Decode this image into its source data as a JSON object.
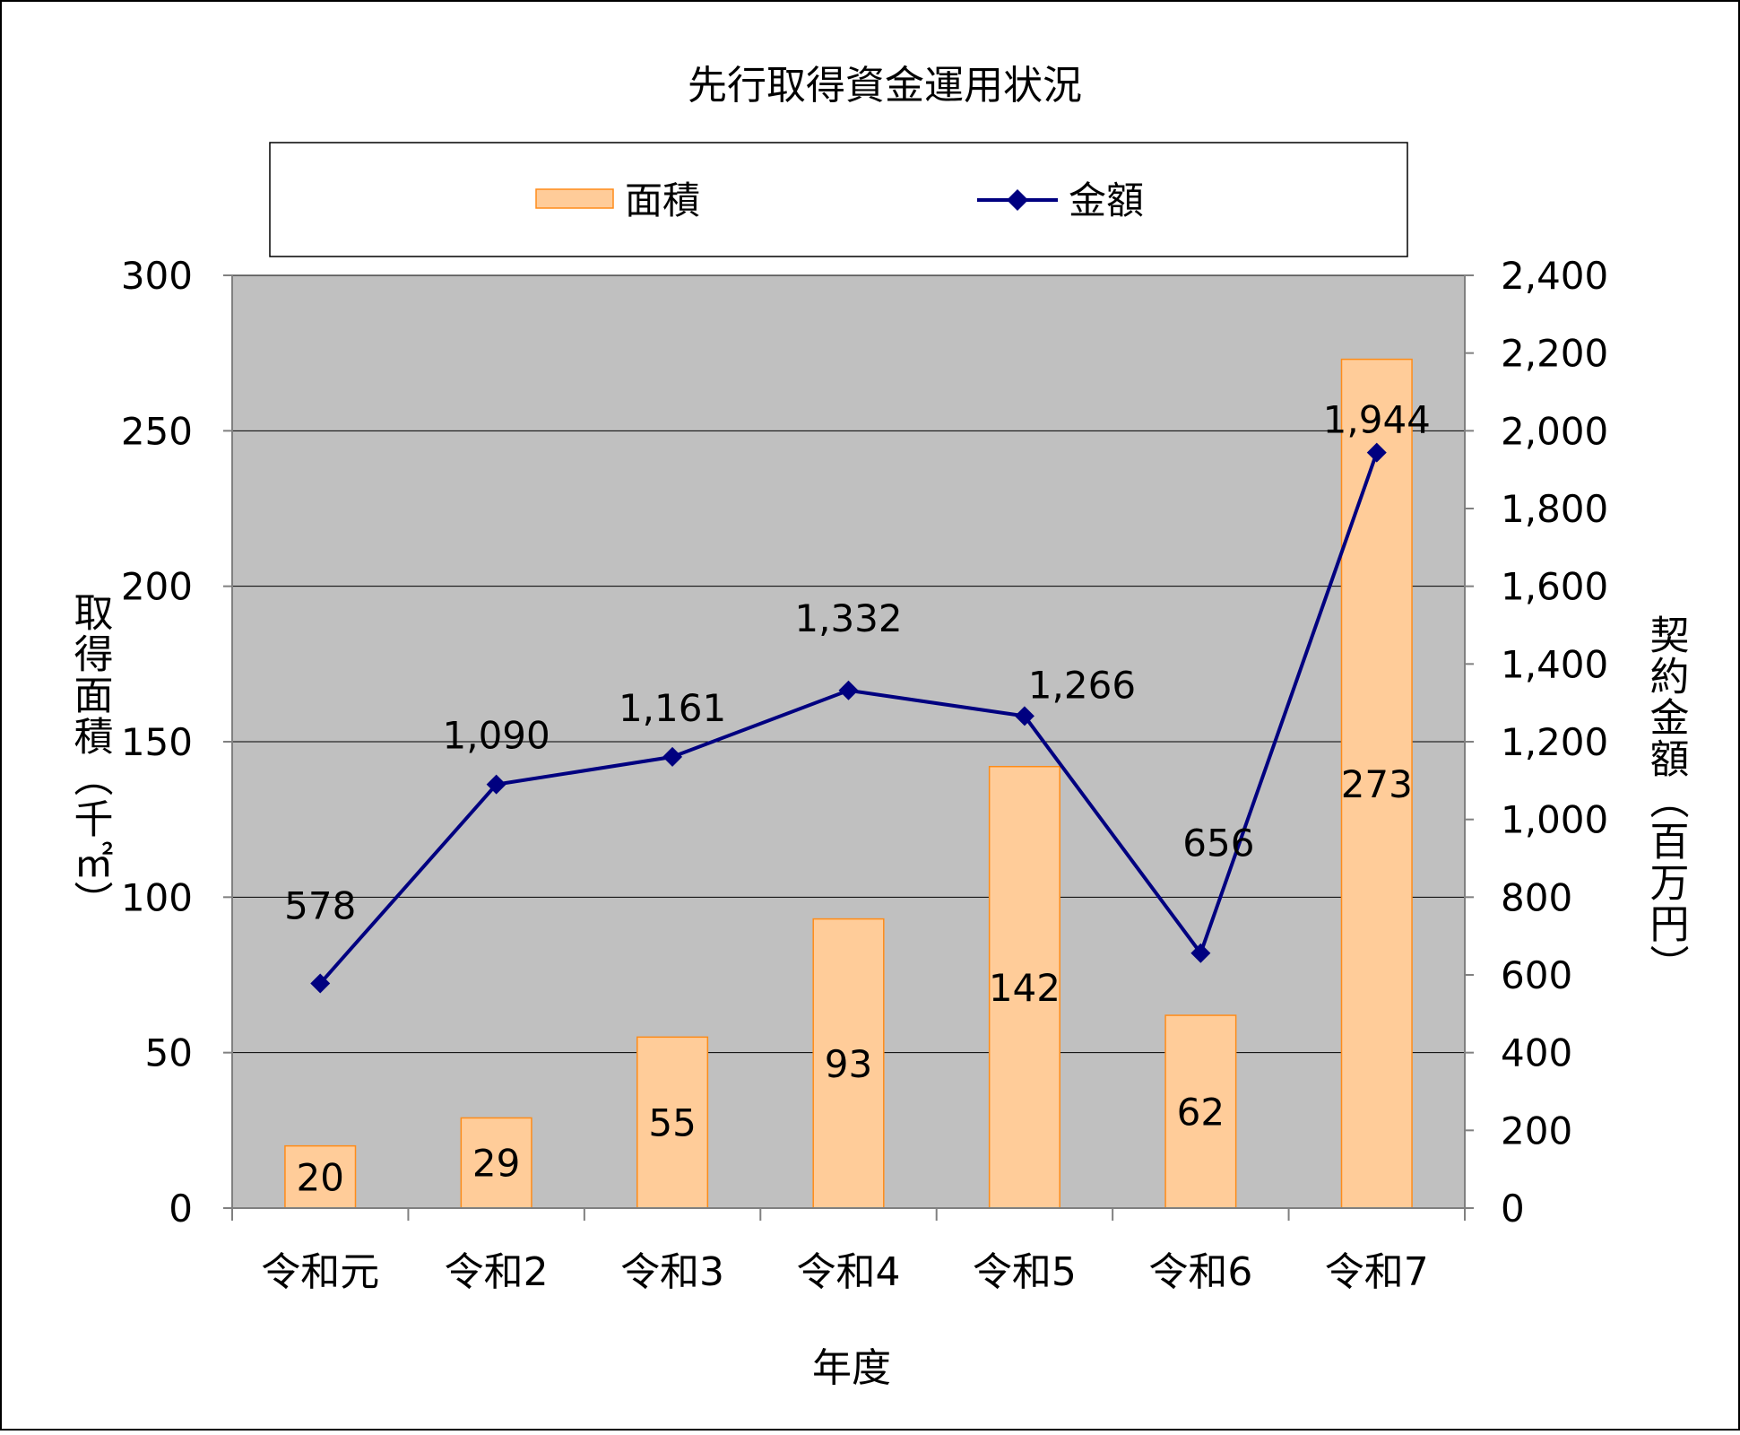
{
  "chart_data": {
    "type": "bar",
    "title": "先行取得資金運用状況",
    "xlabel": "年度",
    "ylabel": "取得面積（千㎡）",
    "y2label": "契約金額（百万円）",
    "categories": [
      "令和元",
      "令和2",
      "令和3",
      "令和4",
      "令和5",
      "令和6",
      "令和7"
    ],
    "ylim": [
      0,
      300
    ],
    "yticks": [
      "0",
      "50",
      "100",
      "150",
      "200",
      "250",
      "300"
    ],
    "y2lim": [
      0,
      2400
    ],
    "y2ticks": [
      "0",
      "200",
      "400",
      "600",
      "800",
      "1,000",
      "1,200",
      "1,400",
      "1,600",
      "1,800",
      "2,000",
      "2,200",
      "2,400"
    ],
    "grid": true,
    "legend_position": "top",
    "series": [
      {
        "name": "面積",
        "type": "bar",
        "axis": "left",
        "values": [
          20,
          29,
          55,
          93,
          142,
          62,
          273
        ],
        "labels": [
          "20",
          "29",
          "55",
          "93",
          "142",
          "62",
          "273"
        ],
        "color": "#FFCC99",
        "edge_color": "#FF8C1A"
      },
      {
        "name": "金額",
        "type": "line",
        "axis": "right",
        "values": [
          578,
          1090,
          1161,
          1332,
          1266,
          656,
          1944
        ],
        "labels": [
          "578",
          "1,090",
          "1,161",
          "1,332",
          "1,266",
          "656",
          "1,944"
        ],
        "color": "#000080",
        "marker": "diamond"
      }
    ],
    "plot_background": "#C0C0C0",
    "grid_color": "#000000"
  }
}
